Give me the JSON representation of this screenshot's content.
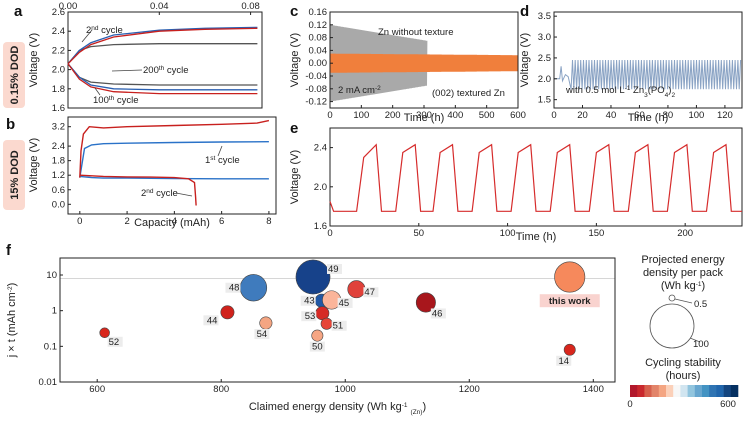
{
  "chart_data": [
    {
      "panel": "a",
      "type": "line",
      "badge": "0.15% DOD",
      "title": "",
      "xlabel": "",
      "ylabel": "Voltage (V)",
      "xlim": [
        0,
        0.085
      ],
      "ylim": [
        1.6,
        2.6
      ],
      "xticks": [
        "0.00",
        "0.04",
        "0.08"
      ],
      "xtick_values": [
        0,
        0.04,
        0.08
      ],
      "yticks": [
        "1.6",
        "1.8",
        "2.0",
        "2.2",
        "2.4",
        "2.6"
      ],
      "ytick_values": [
        1.6,
        1.8,
        2.0,
        2.2,
        2.4,
        2.6
      ],
      "annotations": [
        "2nd cycle",
        "200th cycle",
        "100th cycle"
      ],
      "series": [
        {
          "name": "2nd cycle charge",
          "color": "#555555",
          "x": [
            0,
            0.005,
            0.01,
            0.02,
            0.04,
            0.06,
            0.083
          ],
          "values": [
            2.06,
            2.2,
            2.24,
            2.26,
            2.27,
            2.27,
            2.27
          ]
        },
        {
          "name": "2nd cycle discharge",
          "color": "#555555",
          "x": [
            0,
            0.005,
            0.01,
            0.02,
            0.04,
            0.06,
            0.083
          ],
          "values": [
            2.06,
            1.92,
            1.87,
            1.85,
            1.84,
            1.84,
            1.84
          ]
        },
        {
          "name": "200th cycle charge",
          "color": "#2a5fb0",
          "x": [
            0,
            0.005,
            0.01,
            0.02,
            0.04,
            0.06,
            0.083
          ],
          "values": [
            2.06,
            2.2,
            2.28,
            2.36,
            2.41,
            2.43,
            2.44
          ]
        },
        {
          "name": "200th cycle discharge",
          "color": "#2a5fb0",
          "x": [
            0,
            0.005,
            0.01,
            0.02,
            0.04,
            0.06,
            0.083
          ],
          "values": [
            2.06,
            1.92,
            1.84,
            1.8,
            1.79,
            1.79,
            1.79
          ]
        },
        {
          "name": "100th cycle charge",
          "color": "#c8201e",
          "x": [
            0,
            0.005,
            0.01,
            0.02,
            0.04,
            0.06,
            0.083
          ],
          "values": [
            2.06,
            2.18,
            2.26,
            2.34,
            2.4,
            2.42,
            2.43
          ]
        },
        {
          "name": "100th cycle discharge",
          "color": "#c8201e",
          "x": [
            0,
            0.005,
            0.01,
            0.02,
            0.04,
            0.06,
            0.083
          ],
          "values": [
            2.06,
            1.9,
            1.82,
            1.77,
            1.75,
            1.75,
            1.75
          ]
        }
      ]
    },
    {
      "panel": "b",
      "type": "line",
      "badge": "15% DOD",
      "title": "",
      "xlabel": "Capacity (mAh)",
      "ylabel": "Voltage (V)",
      "xlim": [
        -0.5,
        8.3
      ],
      "ylim": [
        -0.4,
        3.6
      ],
      "xticks": [
        "0",
        "2",
        "4",
        "6",
        "8"
      ],
      "xtick_values": [
        0,
        2,
        4,
        6,
        8
      ],
      "yticks": [
        "0.0",
        "0.6",
        "1.2",
        "1.8",
        "2.4",
        "3.2"
      ],
      "ytick_values": [
        0,
        0.6,
        1.2,
        1.8,
        2.4,
        3.2
      ],
      "annotations": [
        "1st cycle",
        "2nd cycle"
      ],
      "series": [
        {
          "name": "1st cycle charge",
          "color": "#2a72c8",
          "x": [
            0,
            0.2,
            0.5,
            1,
            2,
            4,
            6,
            8
          ],
          "values": [
            1.1,
            2.3,
            2.45,
            2.5,
            2.52,
            2.55,
            2.57,
            2.58
          ]
        },
        {
          "name": "1st cycle discharge",
          "color": "#2a72c8",
          "x": [
            0,
            0.5,
            1,
            2,
            4,
            6,
            8
          ],
          "values": [
            1.15,
            1.1,
            1.08,
            1.08,
            1.06,
            1.05,
            1.05
          ]
        },
        {
          "name": "2nd cycle charge",
          "color": "#c8201e",
          "x": [
            0,
            0.05,
            0.15,
            0.4,
            1,
            2,
            4,
            6,
            7.5,
            8
          ],
          "values": [
            1.1,
            2.2,
            2.9,
            3.2,
            3.15,
            3.2,
            3.25,
            3.3,
            3.35,
            3.45
          ]
        },
        {
          "name": "2nd cycle discharge",
          "color": "#c8201e",
          "x": [
            0,
            1,
            2,
            3,
            4,
            4.6,
            4.85,
            4.9,
            4.92
          ],
          "values": [
            1.2,
            1.15,
            1.13,
            1.12,
            1.1,
            1.05,
            0.9,
            0.3,
            -0.05
          ]
        }
      ]
    },
    {
      "panel": "c",
      "type": "line",
      "title": "",
      "xlabel": "Time (h)",
      "ylabel": "Voltage (V)",
      "xlim": [
        0,
        600
      ],
      "ylim": [
        -0.14,
        0.16
      ],
      "xticks": [
        "0",
        "100",
        "200",
        "300",
        "400",
        "500",
        "600"
      ],
      "xtick_values": [
        0,
        100,
        200,
        300,
        400,
        500,
        600
      ],
      "yticks": [
        "-0.12",
        "-0.08",
        "-0.04",
        "0.00",
        "0.04",
        "0.08",
        "0.12",
        "0.16"
      ],
      "ytick_values": [
        -0.12,
        -0.08,
        -0.04,
        0,
        0.04,
        0.08,
        0.12,
        0.16
      ],
      "annotations": [
        "Zn without texture",
        "2 mA cm",
        "-2",
        "(002) textured Zn"
      ],
      "series": [
        {
          "name": "Zn without texture",
          "color": "#a9a9a9",
          "x_range": [
            0,
            310
          ],
          "amplitude": [
            0.12,
            0.07
          ]
        },
        {
          "name": "(002) textured Zn",
          "color": "#f07f3c",
          "x_range": [
            0,
            600
          ],
          "amplitude": [
            0.03,
            0.025
          ]
        }
      ]
    },
    {
      "panel": "d",
      "type": "line",
      "title": "",
      "xlabel": "Time (h)",
      "ylabel": "Voltage (V)",
      "xlim": [
        0,
        132
      ],
      "ylim": [
        1.3,
        3.6
      ],
      "xticks": [
        "0",
        "20",
        "40",
        "60",
        "80",
        "100",
        "120"
      ],
      "xtick_values": [
        0,
        20,
        40,
        60,
        80,
        100,
        120
      ],
      "yticks": [
        "1.5",
        "2.0",
        "2.5",
        "3.0",
        "3.5"
      ],
      "ytick_values": [
        1.5,
        2.0,
        2.5,
        3.0,
        3.5
      ],
      "annotations": [
        "with 0.5 mol L",
        "-1",
        " Zn",
        "3",
        "(PO",
        "4",
        ")",
        "2"
      ],
      "series": [
        {
          "name": "with 0.5 mol L-1 Zn3(PO4)2",
          "color": "#8aa3c4",
          "start_h": 12,
          "upper": 2.45,
          "lower": 1.75,
          "cycles": 62
        }
      ]
    },
    {
      "panel": "e",
      "type": "line",
      "title": "",
      "xlabel": "Time (h)",
      "ylabel": "Voltage (V)",
      "xlim": [
        0,
        232
      ],
      "ylim": [
        1.6,
        2.6
      ],
      "xticks": [
        "0",
        "50",
        "100",
        "150",
        "200"
      ],
      "xtick_values": [
        0,
        50,
        100,
        150,
        200
      ],
      "yticks": [
        "1.6",
        "2.0",
        "2.4"
      ],
      "ytick_values": [
        1.6,
        2.0,
        2.4
      ],
      "series": [
        {
          "name": "cycling",
          "color": "#d62c2c",
          "x": [
            0,
            2,
            15,
            19,
            26,
            29,
            37,
            41,
            48,
            51,
            58,
            62,
            69,
            72,
            80,
            84,
            91,
            94,
            102,
            106,
            113,
            116,
            124,
            128,
            135,
            138,
            146,
            150,
            157,
            160,
            168,
            172,
            179,
            182,
            190,
            194,
            201,
            204,
            212,
            216,
            223,
            226,
            232
          ],
          "values": [
            1.85,
            1.75,
            1.75,
            2.3,
            2.43,
            1.75,
            1.75,
            2.35,
            2.43,
            1.75,
            1.75,
            2.35,
            2.43,
            1.75,
            1.75,
            2.35,
            2.43,
            1.75,
            1.75,
            2.35,
            2.43,
            1.75,
            1.75,
            2.35,
            2.43,
            1.75,
            1.75,
            2.35,
            2.43,
            1.75,
            1.75,
            2.35,
            2.43,
            1.75,
            1.75,
            2.35,
            2.43,
            1.75,
            1.75,
            2.35,
            2.43,
            1.75,
            1.75
          ]
        }
      ]
    },
    {
      "panel": "f",
      "type": "scatter",
      "title": "",
      "xlabel": "Claimed energy density (Wh kg",
      "xlabel_sup": "-1",
      "xlabel_sub": "(Zn)",
      "xlabel_end": ")",
      "ylabel": "j × t (mAh cm",
      "ylabel_sup": "-2",
      "ylabel_end": ")",
      "xlim": [
        540,
        1435
      ],
      "ylim_log": [
        0.01,
        30
      ],
      "reference_line": 8,
      "xticks": [
        "600",
        "800",
        "1000",
        "1200",
        "1400"
      ],
      "xtick_values": [
        600,
        800,
        1000,
        1200,
        1400
      ],
      "yticks": [
        "0.01",
        "0.1",
        "1",
        "10"
      ],
      "ytick_values": [
        0.01,
        0.1,
        1,
        10
      ],
      "points": [
        {
          "label": "52",
          "x": 612,
          "y": 0.24,
          "size": 0.5,
          "color": "#d8261c"
        },
        {
          "label": "44",
          "x": 810,
          "y": 0.9,
          "size": 2,
          "color": "#d0221c"
        },
        {
          "label": "54",
          "x": 872,
          "y": 0.45,
          "size": 1.5,
          "color": "#f4a582"
        },
        {
          "label": "48",
          "x": 852,
          "y": 4.4,
          "size": 17,
          "color": "#3f7bbd"
        },
        {
          "label": "49",
          "x": 948,
          "y": 8.8,
          "size": 32,
          "color": "#17428a"
        },
        {
          "label": "43",
          "x": 962,
          "y": 1.9,
          "size": 2,
          "color": "#2158a5"
        },
        {
          "label": "45",
          "x": 978,
          "y": 2.0,
          "size": 6,
          "color": "#fbb59a"
        },
        {
          "label": "47",
          "x": 1018,
          "y": 4.0,
          "size": 5,
          "color": "#e0413a"
        },
        {
          "label": "53",
          "x": 963,
          "y": 0.85,
          "size": 2,
          "color": "#d62a25"
        },
        {
          "label": "51",
          "x": 970,
          "y": 0.43,
          "size": 1,
          "color": "#e64538"
        },
        {
          "label": "50",
          "x": 955,
          "y": 0.2,
          "size": 1,
          "color": "#f6a684"
        },
        {
          "label": "46",
          "x": 1130,
          "y": 1.7,
          "size": 7,
          "color": "#a8161c"
        },
        {
          "label": "this work",
          "x": 1362,
          "y": 8.8,
          "size": 24,
          "color": "#f6895c"
        },
        {
          "label": "14",
          "x": 1362,
          "y": 0.08,
          "size": 1,
          "color": "#d8261c"
        }
      ],
      "size_legend": {
        "title_line1": "Projected energy",
        "title_line2": "density per pack",
        "title_line3": "(Wh kg",
        "title_sup": "-1",
        "title_end": ")",
        "small": "0.5",
        "large": "100"
      },
      "color_legend": {
        "title_line1": "Cycling stability",
        "title_line2": "(hours)",
        "min": "0",
        "max": "600",
        "colors": [
          "#b2182b",
          "#c9282d",
          "#d6604d",
          "#e2846a",
          "#f4a582",
          "#fbd0b9",
          "#f7f7f7",
          "#d1e5f0",
          "#92c5de",
          "#67a6cf",
          "#4393c3",
          "#2f74b3",
          "#2166ac",
          "#14457f",
          "#053061"
        ]
      }
    }
  ]
}
